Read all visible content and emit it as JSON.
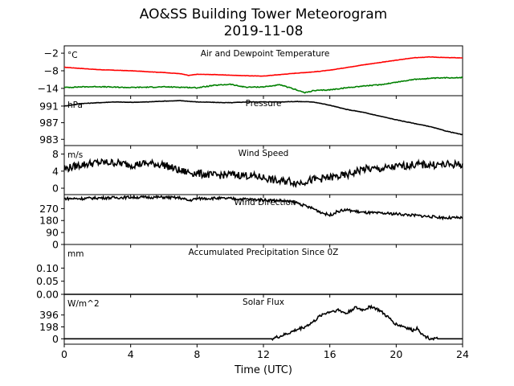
{
  "title": "AO&SS Building Tower Meteorogram",
  "subtitle": "2019-11-08",
  "xlabel": "Time (UTC)",
  "colors": {
    "temperature": "#ff0000",
    "dewpoint": "#008000",
    "black": "#000000"
  },
  "chart_data": [
    {
      "type": "line",
      "title": "Air and Dewpoint Temperature",
      "unit": "°C",
      "x_ticks": [
        0,
        4,
        8,
        12,
        16,
        20,
        24
      ],
      "xlim": [
        0,
        24
      ],
      "yticks": [
        -2,
        -8,
        -14
      ],
      "ylim": [
        -16.5,
        0.5
      ],
      "series": [
        {
          "key": "temperature",
          "color": "#ff0000",
          "x": [
            0,
            1,
            2,
            3,
            4,
            5,
            6,
            7,
            7.5,
            8,
            9,
            10,
            11,
            12,
            13,
            14,
            15,
            16,
            17,
            18,
            19,
            20,
            21,
            22,
            23,
            24
          ],
          "y": [
            -6.8,
            -7.2,
            -7.6,
            -7.8,
            -8.0,
            -8.3,
            -8.6,
            -9.0,
            -9.6,
            -9.2,
            -9.3,
            -9.5,
            -9.7,
            -9.8,
            -9.3,
            -8.8,
            -8.4,
            -7.8,
            -6.9,
            -6.0,
            -5.2,
            -4.4,
            -3.6,
            -3.3,
            -3.5,
            -3.6
          ]
        },
        {
          "key": "dewpoint",
          "color": "#008000",
          "x": [
            0,
            1,
            2,
            3,
            4,
            5,
            6,
            7,
            8,
            9,
            10,
            10.5,
            11,
            12,
            13,
            14,
            14.5,
            15,
            16,
            17,
            18,
            19,
            20,
            21,
            22,
            23,
            24
          ],
          "y": [
            -13.7,
            -13.5,
            -13.4,
            -13.6,
            -13.7,
            -13.6,
            -13.5,
            -13.6,
            -13.8,
            -13.0,
            -12.6,
            -13.2,
            -13.6,
            -13.5,
            -12.8,
            -14.5,
            -15.5,
            -14.8,
            -14.5,
            -13.8,
            -13.2,
            -12.8,
            -11.9,
            -11.0,
            -10.6,
            -10.4,
            -10.3
          ]
        }
      ]
    },
    {
      "type": "line",
      "title": "Pressure",
      "unit": "hPa",
      "yticks": [
        991,
        987,
        983
      ],
      "ylim": [
        981.5,
        993.5
      ],
      "series": [
        {
          "key": "pressure",
          "color": "#000000",
          "x": [
            0,
            1,
            2,
            3,
            4,
            5,
            6,
            7,
            8,
            9,
            10,
            11,
            12,
            13,
            14,
            15,
            16,
            17,
            18,
            19,
            20,
            21,
            22,
            23,
            24
          ],
          "y": [
            991.0,
            991.6,
            991.8,
            992.0,
            991.9,
            992.0,
            992.2,
            992.3,
            992.0,
            991.9,
            991.8,
            992.0,
            992.0,
            992.0,
            992.1,
            992.0,
            991.2,
            990.2,
            989.5,
            988.6,
            987.7,
            986.9,
            986.1,
            985.0,
            984.1
          ]
        }
      ]
    },
    {
      "type": "line",
      "title": "Wind Speed",
      "unit": "m/s",
      "yticks": [
        8,
        4,
        0
      ],
      "ylim": [
        -1.5,
        10
      ],
      "series": [
        {
          "key": "wind_speed",
          "color": "#000000",
          "x": [
            0,
            0.5,
            1,
            2,
            3,
            4,
            5,
            6,
            7,
            8,
            9,
            10,
            11,
            12,
            13,
            13.5,
            14,
            15,
            16,
            17,
            18,
            19,
            20,
            21,
            22,
            23,
            24
          ],
          "y": [
            4.5,
            5.0,
            5.5,
            6.0,
            6.0,
            5.5,
            5.8,
            5.5,
            4.0,
            3.5,
            3.0,
            3.2,
            3.0,
            2.5,
            1.5,
            1.8,
            1.2,
            2.0,
            2.5,
            3.0,
            4.5,
            4.5,
            5.0,
            5.5,
            5.5,
            5.5,
            5.6
          ]
        }
      ]
    },
    {
      "type": "line",
      "title": "Wind Direction",
      "unit": "",
      "yticks": [
        270,
        180,
        90,
        0
      ],
      "ylim": [
        0,
        375
      ],
      "series": [
        {
          "key": "wind_direction",
          "color": "#000000",
          "x": [
            0,
            1,
            2,
            3,
            4,
            5,
            6,
            7,
            7.5,
            8,
            9,
            10,
            11,
            12,
            13,
            14,
            14.5,
            15,
            15.5,
            16,
            16.5,
            17,
            18,
            19,
            20,
            21,
            22,
            23,
            24
          ],
          "y": [
            345,
            345,
            350,
            352,
            355,
            355,
            355,
            350,
            330,
            345,
            348,
            345,
            340,
            335,
            330,
            315,
            290,
            270,
            240,
            220,
            250,
            260,
            240,
            235,
            230,
            220,
            210,
            200,
            200
          ]
        }
      ]
    },
    {
      "type": "line",
      "title": "Accumulated Precipitation Since 0Z",
      "unit": "mm",
      "yticks": [
        0.1,
        0.05,
        0.0
      ],
      "tick_labels": [
        "0.10",
        "0.05",
        "0.00"
      ],
      "ylim": [
        0,
        0.19
      ],
      "series": [
        {
          "key": "precipitation",
          "color": "#000000",
          "x": [
            0,
            24
          ],
          "y": [
            0,
            0
          ]
        }
      ]
    },
    {
      "type": "line",
      "title": "Solar Flux",
      "unit": "W/m^2",
      "yticks": [
        396,
        198,
        0
      ],
      "ylim": [
        -90,
        740
      ],
      "series": [
        {
          "key": "solar_flux",
          "color": "#000000",
          "x": [
            0,
            12.5,
            13,
            13.5,
            14,
            14.5,
            15,
            15.5,
            16,
            16.5,
            17,
            17.5,
            18,
            18.5,
            19,
            19.5,
            20,
            20.5,
            21,
            21.3,
            21.6,
            22,
            22.5,
            24
          ],
          "y": [
            0,
            0,
            40,
            90,
            150,
            200,
            280,
            400,
            450,
            480,
            420,
            520,
            480,
            540,
            470,
            360,
            240,
            200,
            140,
            180,
            60,
            10,
            0,
            0
          ]
        }
      ]
    }
  ]
}
